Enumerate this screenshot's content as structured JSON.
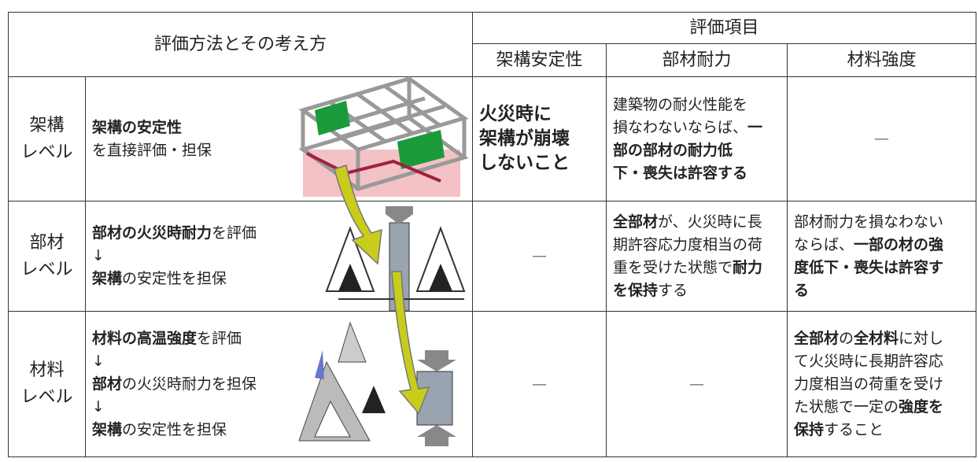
{
  "header": {
    "method": "評価方法とその考え方",
    "items": "評価項目",
    "columns": [
      "架構安定性",
      "部材耐力",
      "材料強度"
    ]
  },
  "rows": [
    {
      "level": [
        "架構",
        "レベル"
      ],
      "method": [
        [
          {
            "text": "架構の安定性",
            "bold": true
          }
        ],
        [
          {
            "text": "を直接評価・担保",
            "bold": false
          }
        ]
      ],
      "stability": [
        [
          {
            "text": "火災時に",
            "bold": true
          }
        ],
        [
          {
            "text": "架構が崩壊",
            "bold": true
          }
        ],
        [
          {
            "text": "しないこと",
            "bold": true
          }
        ]
      ],
      "strength": [
        [
          {
            "text": "建築物の耐火性能を",
            "bold": false
          }
        ],
        [
          {
            "text": "損なわないならば、",
            "bold": false
          },
          {
            "text": "一",
            "bold": true
          }
        ],
        [
          {
            "text": "部の部材の耐力低",
            "bold": true
          }
        ],
        [
          {
            "text": "下・喪失は許容する",
            "bold": true
          }
        ]
      ],
      "material": [
        [
          {
            "text": "—",
            "bold": false
          }
        ]
      ]
    },
    {
      "level": [
        "部材",
        "レベル"
      ],
      "method": [
        [
          {
            "text": "部材の火災時耐力",
            "bold": true
          },
          {
            "text": "を評価",
            "bold": false
          }
        ],
        [
          {
            "text": "↓",
            "bold": false
          }
        ],
        [
          {
            "text": "架構",
            "bold": true
          },
          {
            "text": "の安定性を担保",
            "bold": false
          }
        ]
      ],
      "stability": [
        [
          {
            "text": "—",
            "bold": false
          }
        ]
      ],
      "strength": [
        [
          {
            "text": "全部材",
            "bold": true
          },
          {
            "text": "が、火災時に長",
            "bold": false
          }
        ],
        [
          {
            "text": "期許容応力度相当の荷",
            "bold": false
          }
        ],
        [
          {
            "text": "重を受けた状態で",
            "bold": false
          },
          {
            "text": "耐力",
            "bold": true
          }
        ],
        [
          {
            "text": "を保持",
            "bold": true
          },
          {
            "text": "する",
            "bold": false
          }
        ]
      ],
      "material": [
        [
          {
            "text": "部材耐力を損なわない",
            "bold": false
          }
        ],
        [
          {
            "text": "ならば、",
            "bold": false
          },
          {
            "text": "一部の材の強",
            "bold": true
          }
        ],
        [
          {
            "text": "度低下・喪失は許容す",
            "bold": true
          }
        ],
        [
          {
            "text": "る",
            "bold": true
          }
        ]
      ]
    },
    {
      "level": [
        "材料",
        "レベル"
      ],
      "method": [
        [
          {
            "text": "材料の高温強度",
            "bold": true
          },
          {
            "text": "を評価",
            "bold": false
          }
        ],
        [
          {
            "text": "↓",
            "bold": false
          }
        ],
        [
          {
            "text": "部材",
            "bold": true
          },
          {
            "text": "の火災時耐力を担保",
            "bold": false
          }
        ],
        [
          {
            "text": "↓",
            "bold": false
          }
        ],
        [
          {
            "text": "架構",
            "bold": true
          },
          {
            "text": "の安定性を担保",
            "bold": false
          }
        ]
      ],
      "stability": [
        [
          {
            "text": "—",
            "bold": false
          }
        ]
      ],
      "strength": [
        [
          {
            "text": "—",
            "bold": false
          }
        ]
      ],
      "material": [
        [
          {
            "text": "全部材",
            "bold": true
          },
          {
            "text": "の",
            "bold": false
          },
          {
            "text": "全材料",
            "bold": true
          },
          {
            "text": "に対し",
            "bold": false
          }
        ],
        [
          {
            "text": "て火災時に長期許容応",
            "bold": false
          }
        ],
        [
          {
            "text": "力度相当の荷重を受け",
            "bold": false
          }
        ],
        [
          {
            "text": "た状態で一定の",
            "bold": false
          },
          {
            "text": "強度を",
            "bold": true
          }
        ],
        [
          {
            "text": "保持",
            "bold": true
          },
          {
            "text": "すること",
            "bold": false
          }
        ]
      ]
    }
  ]
}
